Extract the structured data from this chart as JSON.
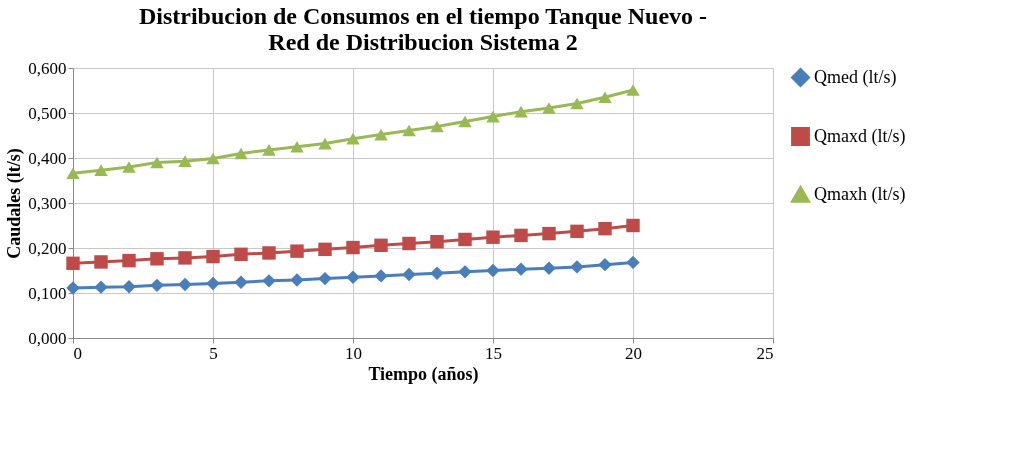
{
  "chart_data": {
    "type": "line",
    "title": [
      "Distribucion de Consumos en el tiempo Tanque Nuevo -",
      "Red de Distribucion Sistema 2"
    ],
    "xlabel": "Tiempo (años)",
    "ylabel": "Caudales (lt/s)",
    "x": [
      0,
      1,
      2,
      3,
      4,
      5,
      6,
      7,
      8,
      9,
      10,
      11,
      12,
      13,
      14,
      15,
      16,
      17,
      18,
      19,
      20
    ],
    "series": [
      {
        "name": "Qmed (lt/s)",
        "color": "#4a7ebb",
        "marker": "diamond",
        "values": [
          0.111,
          0.113,
          0.114,
          0.117,
          0.119,
          0.121,
          0.124,
          0.127,
          0.129,
          0.132,
          0.135,
          0.138,
          0.141,
          0.144,
          0.147,
          0.15,
          0.153,
          0.155,
          0.158,
          0.163,
          0.168
        ]
      },
      {
        "name": "Qmaxd (lt/s)",
        "color": "#be4b48",
        "marker": "square",
        "values": [
          0.166,
          0.169,
          0.172,
          0.176,
          0.178,
          0.181,
          0.186,
          0.189,
          0.193,
          0.197,
          0.201,
          0.206,
          0.21,
          0.214,
          0.219,
          0.224,
          0.228,
          0.232,
          0.237,
          0.243,
          0.25
        ]
      },
      {
        "name": "Qmaxh (lt/s)",
        "color": "#98b954",
        "marker": "triangle",
        "values": [
          0.366,
          0.373,
          0.38,
          0.39,
          0.393,
          0.399,
          0.41,
          0.418,
          0.425,
          0.432,
          0.443,
          0.452,
          0.461,
          0.47,
          0.481,
          0.492,
          0.503,
          0.511,
          0.521,
          0.535,
          0.551
        ]
      }
    ],
    "xlim": [
      0,
      25
    ],
    "xticks": [
      0,
      5,
      10,
      15,
      20,
      25
    ],
    "ylim": [
      0,
      0.6
    ],
    "yticks": [
      {
        "value": 0,
        "label": "0,000"
      },
      {
        "value": 0.1,
        "label": "0,100"
      },
      {
        "value": 0.2,
        "label": "0,200"
      },
      {
        "value": 0.3,
        "label": "0,300"
      },
      {
        "value": 0.4,
        "label": "0,400"
      },
      {
        "value": 0.5,
        "label": "0,500"
      },
      {
        "value": 0.6,
        "label": "0,600"
      }
    ],
    "grid": true,
    "legend": "right",
    "line_style": "solid"
  }
}
